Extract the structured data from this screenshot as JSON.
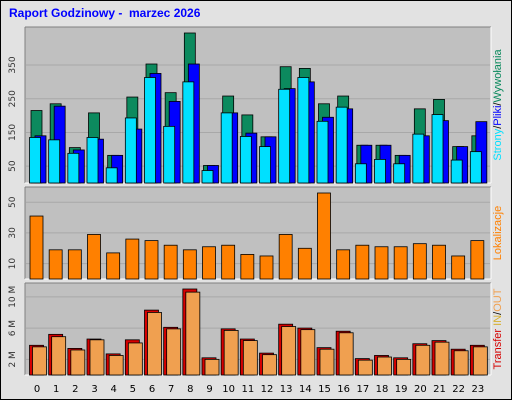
{
  "window": {
    "title": "Raport Godzinowy -  marzec 2026"
  },
  "colors": {
    "hits": "#0c8a5e",
    "files": "#0000ff",
    "pages": "#00e0ff",
    "visits": "#ff8000",
    "kbytes_in": "#d60000",
    "kbytes_out": "#f0a050",
    "legend_out_text": "#d6b030"
  },
  "chart_data": [
    {
      "type": "bar",
      "name": "hits_files_pages",
      "categories": [
        "0",
        "1",
        "2",
        "3",
        "4",
        "5",
        "6",
        "7",
        "8",
        "9",
        "10",
        "11",
        "12",
        "13",
        "14",
        "15",
        "16",
        "17",
        "18",
        "19",
        "20",
        "21",
        "22",
        "23"
      ],
      "series": [
        {
          "name": "Strony",
          "values": [
            215,
            235,
            105,
            208,
            82,
            255,
            353,
            268,
            445,
            52,
            258,
            202,
            137,
            345,
            340,
            235,
            258,
            112,
            112,
            82,
            220,
            248,
            108,
            140
          ]
        },
        {
          "name": "Pliki",
          "values": [
            140,
            228,
            98,
            130,
            82,
            160,
            325,
            242,
            353,
            52,
            208,
            148,
            137,
            280,
            300,
            195,
            220,
            112,
            112,
            82,
            140,
            185,
            108,
            182
          ]
        },
        {
          "name": "Wywołania",
          "values": [
            135,
            128,
            88,
            135,
            45,
            193,
            313,
            168,
            300,
            37,
            208,
            138,
            108,
            278,
            313,
            183,
            225,
            57,
            70,
            57,
            145,
            203,
            68,
            93
          ]
        }
      ],
      "ylabels": [
        "50",
        "150",
        "250",
        "350"
      ],
      "ylim": [
        0,
        445
      ],
      "legend": [
        "Strony",
        "/",
        "Pliki",
        "/",
        "Wywołania"
      ]
    },
    {
      "type": "bar",
      "name": "visits",
      "categories": [
        "0",
        "1",
        "2",
        "3",
        "4",
        "5",
        "6",
        "7",
        "8",
        "9",
        "10",
        "11",
        "12",
        "13",
        "14",
        "15",
        "16",
        "17",
        "18",
        "19",
        "20",
        "21",
        "22",
        "23"
      ],
      "series": [
        {
          "name": "Lokalizacje",
          "values": [
            41,
            19,
            19,
            29,
            17,
            26,
            25,
            22,
            19,
            21,
            22,
            16,
            15,
            29,
            20,
            56,
            19,
            22,
            21,
            21,
            23,
            22,
            15,
            25
          ]
        }
      ],
      "ylabels": [
        "10",
        "30",
        "50"
      ],
      "ylim": [
        0,
        56
      ],
      "legend": [
        "Lokalizacje"
      ]
    },
    {
      "type": "bar",
      "name": "transfer",
      "categories": [
        "0",
        "1",
        "2",
        "3",
        "4",
        "5",
        "6",
        "7",
        "8",
        "9",
        "10",
        "11",
        "12",
        "13",
        "14",
        "15",
        "16",
        "17",
        "18",
        "19",
        "20",
        "21",
        "22",
        "23"
      ],
      "series": [
        {
          "name": "IN",
          "values": [
            3.8,
            5.2,
            3.4,
            4.6,
            2.7,
            4.5,
            8.3,
            6.1,
            11.0,
            2.2,
            5.9,
            4.6,
            2.8,
            6.5,
            6.0,
            3.5,
            5.6,
            2.1,
            2.5,
            2.2,
            4.0,
            4.4,
            3.3,
            3.8
          ]
        },
        {
          "name": "OUT",
          "values": [
            3.6,
            4.9,
            3.2,
            4.5,
            2.5,
            4.1,
            8.0,
            5.9,
            10.6,
            2.0,
            5.7,
            4.4,
            2.6,
            6.2,
            5.8,
            3.3,
            5.4,
            1.9,
            2.3,
            2.0,
            3.8,
            4.2,
            3.1,
            3.6
          ]
        }
      ],
      "ylabels": [
        "2 M",
        "6 M",
        "10 M"
      ],
      "ylim": [
        0,
        11.0
      ],
      "legend": [
        "Transfer",
        " ",
        "IN",
        "/",
        "OUT"
      ]
    }
  ]
}
